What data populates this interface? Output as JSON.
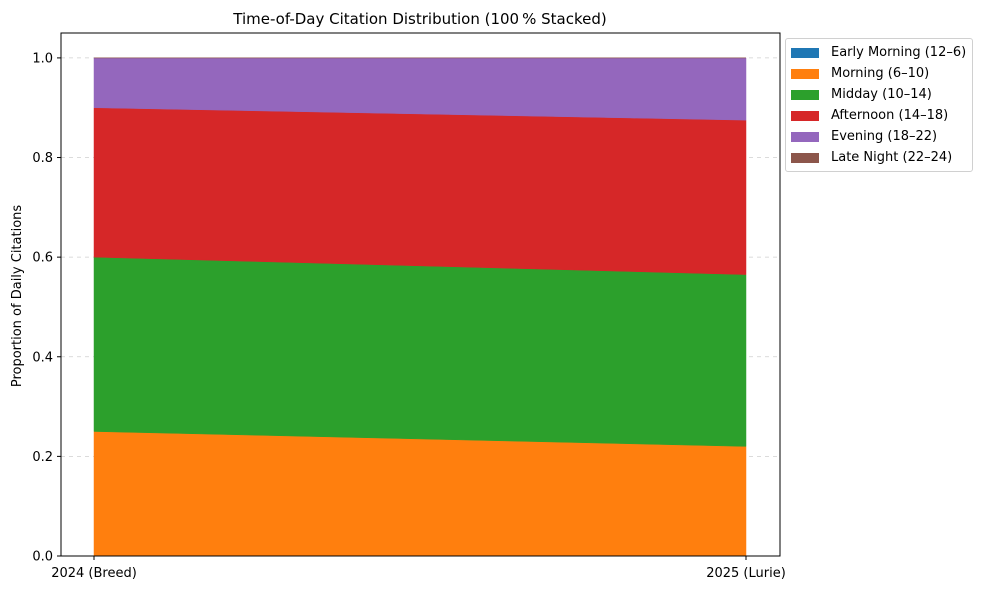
{
  "chart_data": {
    "type": "area",
    "stacked": true,
    "normalized": true,
    "title": "Time-of-Day Citation Distribution (100 % Stacked)",
    "xlabel": "",
    "ylabel": "Proportion of Daily Citations",
    "categories": [
      "2024 (Breed)",
      "2025 (Lurie)"
    ],
    "ylim": [
      0,
      1.05
    ],
    "yticks": [
      "0.0",
      "0.2",
      "0.4",
      "0.6",
      "0.8",
      "1.0"
    ],
    "ytick_values": [
      0,
      0.2,
      0.4,
      0.6,
      0.8,
      1.0
    ],
    "grid": true,
    "legend_position": "outside-top-right",
    "series": [
      {
        "name": "Early Morning (12–6)",
        "color": "#1f77b4",
        "values": [
          0.0,
          0.0
        ]
      },
      {
        "name": "Morning (6–10)",
        "color": "#ff7f0e",
        "values": [
          0.25,
          0.22
        ]
      },
      {
        "name": "Midday (10–14)",
        "color": "#2ca02c",
        "values": [
          0.35,
          0.345
        ]
      },
      {
        "name": "Afternoon (14–18)",
        "color": "#d62728",
        "values": [
          0.3,
          0.31
        ]
      },
      {
        "name": "Evening (18–22)",
        "color": "#9467bd",
        "values": [
          0.1,
          0.125
        ]
      },
      {
        "name": "Late Night (22–24)",
        "color": "#8c564b",
        "values": [
          0.0,
          0.0
        ]
      }
    ]
  }
}
